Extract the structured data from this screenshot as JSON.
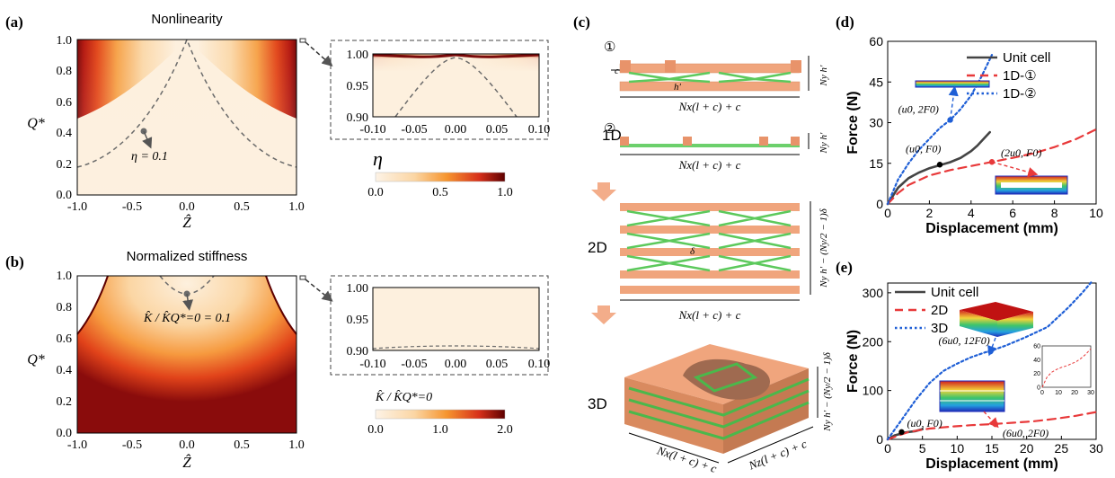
{
  "panels": {
    "a": "(a)",
    "b": "(b)",
    "c": "(c)",
    "d": "(d)",
    "e": "(e)"
  },
  "panel_a": {
    "title": "Nonlinearity",
    "ylabel": "Q*",
    "xlabel": "Ẑ",
    "xticks": [
      "-1.0",
      "-0.5",
      "0.0",
      "0.5",
      "1.0"
    ],
    "yticks": [
      "0.0",
      "0.2",
      "0.4",
      "0.6",
      "0.8",
      "1.0"
    ],
    "annotation": "η = 0.1",
    "inset_xticks": [
      "-0.10",
      "-0.05",
      "0.00",
      "0.05",
      "0.10"
    ],
    "inset_yticks": [
      "0.90",
      "0.95",
      "1.00"
    ],
    "colorbar_label": "η",
    "colorbar_ticks": [
      "0.0",
      "0.5",
      "1.0"
    ]
  },
  "panel_b": {
    "title": "Normalized stiffness",
    "ylabel": "Q*",
    "xlabel": "Ẑ",
    "xticks": [
      "-1.0",
      "-0.5",
      "0.0",
      "0.5",
      "1.0"
    ],
    "yticks": [
      "0.0",
      "0.2",
      "0.4",
      "0.6",
      "0.8",
      "1.0"
    ],
    "annotation": "K̂ / K̂Q*=0 = 0.1",
    "inset_xticks": [
      "-0.10",
      "-0.05",
      "0.00",
      "0.05",
      "0.10"
    ],
    "inset_yticks": [
      "0.90",
      "0.95",
      "1.00"
    ],
    "colorbar_label": "K̂ / K̂Q*=0",
    "colorbar_ticks": [
      "0.0",
      "1.0",
      "2.0"
    ]
  },
  "panel_c": {
    "label_1d": "1D",
    "label_2d": "2D",
    "label_3d": "3D",
    "mark1": "①",
    "mark2": "②",
    "dim_1d_1": "Nx(l + c) + c",
    "dim_1d_2": "Nx(l + c) + c",
    "dim_2d": "Nx(l + c) + c",
    "dim_3d_x": "Nx(l + c) + c",
    "dim_3d_z": "Nz(l + c) + c",
    "dim_h1": "Ny h′",
    "dim_h2": "Ny h′",
    "dim_h2d": "Ny h′ − (Ny/2 − 1)δ",
    "dim_h3d": "Ny h′ − (Ny/2 − 1)δ",
    "c_label": "c",
    "h_label": "h′",
    "delta_label": "δ"
  },
  "chart_data": [
    {
      "id": "d",
      "type": "line",
      "xlabel": "Displacement (mm)",
      "ylabel": "Force (N)",
      "xlim": [
        0,
        10
      ],
      "ylim": [
        0,
        60
      ],
      "xticks": [
        0,
        2,
        4,
        6,
        8,
        10
      ],
      "yticks": [
        0,
        15,
        30,
        45,
        60
      ],
      "legend": "top-right",
      "series": [
        {
          "name": "Unit cell",
          "color": "#444444",
          "style": "solid",
          "x": [
            0,
            0.5,
            1,
            1.5,
            2,
            2.5,
            3,
            3.5,
            4,
            4.3,
            4.6,
            4.9
          ],
          "y": [
            0,
            6,
            9.5,
            11.6,
            13.2,
            14.3,
            15.4,
            17,
            19.5,
            21.5,
            24,
            26.5
          ]
        },
        {
          "name": "1D-①",
          "color": "#e8393a",
          "style": "dashed",
          "x": [
            0,
            0.5,
            1,
            2,
            3,
            4,
            5,
            6,
            7,
            8,
            9,
            10
          ],
          "y": [
            0,
            4,
            7,
            10.5,
            12.5,
            14,
            15.5,
            17,
            18.7,
            21,
            23.8,
            27.5
          ]
        },
        {
          "name": "1D-②",
          "color": "#1f5fd6",
          "style": "dotted",
          "x": [
            0,
            0.5,
            1,
            1.5,
            2,
            2.5,
            3,
            3.5,
            4,
            4.5,
            5
          ],
          "y": [
            0,
            9,
            15,
            20,
            24,
            28,
            31,
            35,
            40,
            47,
            55
          ]
        }
      ],
      "annotations": [
        {
          "text": "(u0, 2F0)",
          "x": 3.0,
          "y": 31
        },
        {
          "text": "(u0, F0)",
          "x": 2.5,
          "y": 14.5
        },
        {
          "text": "(2u0, F0)",
          "x": 5.0,
          "y": 15.5
        }
      ]
    },
    {
      "id": "e",
      "type": "line",
      "xlabel": "Displacement (mm)",
      "ylabel": "Force (N)",
      "xlim": [
        0,
        30
      ],
      "ylim": [
        0,
        320
      ],
      "xticks": [
        0,
        5,
        10,
        15,
        20,
        25,
        30
      ],
      "yticks": [
        0,
        100,
        200,
        300
      ],
      "legend": "top-left",
      "series": [
        {
          "name": "Unit cell",
          "color": "#444444",
          "style": "solid",
          "x": [
            0,
            1,
            2,
            2.5,
            3,
            4,
            5
          ],
          "y": [
            0,
            8,
            12,
            14,
            15,
            17,
            21
          ]
        },
        {
          "name": "2D",
          "color": "#e8393a",
          "style": "dashed",
          "x": [
            0,
            3,
            6,
            9,
            12,
            15,
            18,
            21,
            24,
            27,
            30
          ],
          "y": [
            0,
            15,
            22,
            26,
            29,
            31,
            34,
            37,
            42,
            48,
            56
          ]
        },
        {
          "name": "3D",
          "color": "#1f5fd6",
          "style": "dotted",
          "x": [
            0,
            2,
            4,
            6,
            8,
            10,
            12,
            14,
            15,
            17,
            20,
            23,
            26,
            28,
            29.5
          ],
          "y": [
            0,
            40,
            80,
            115,
            140,
            155,
            168,
            178,
            182,
            192,
            210,
            230,
            270,
            300,
            325
          ]
        }
      ],
      "annotations": [
        {
          "text": "(6u0, 12F0)",
          "x": 14.8,
          "y": 180
        },
        {
          "text": "(u0, F0)",
          "x": 2.0,
          "y": 15
        },
        {
          "text": "(6u0, 2F0)",
          "x": 15.5,
          "y": 31
        }
      ],
      "inset": {
        "xlim": [
          0,
          30
        ],
        "ylim": [
          0,
          60
        ],
        "xticks": [
          0,
          10,
          20,
          30
        ],
        "yticks": [
          0,
          20,
          40,
          60
        ],
        "x": [
          0,
          3,
          6,
          9,
          12,
          15,
          18,
          21,
          24,
          27,
          30
        ],
        "y": [
          0,
          15,
          22,
          26,
          29,
          31,
          34,
          37,
          42,
          48,
          56
        ]
      }
    }
  ]
}
